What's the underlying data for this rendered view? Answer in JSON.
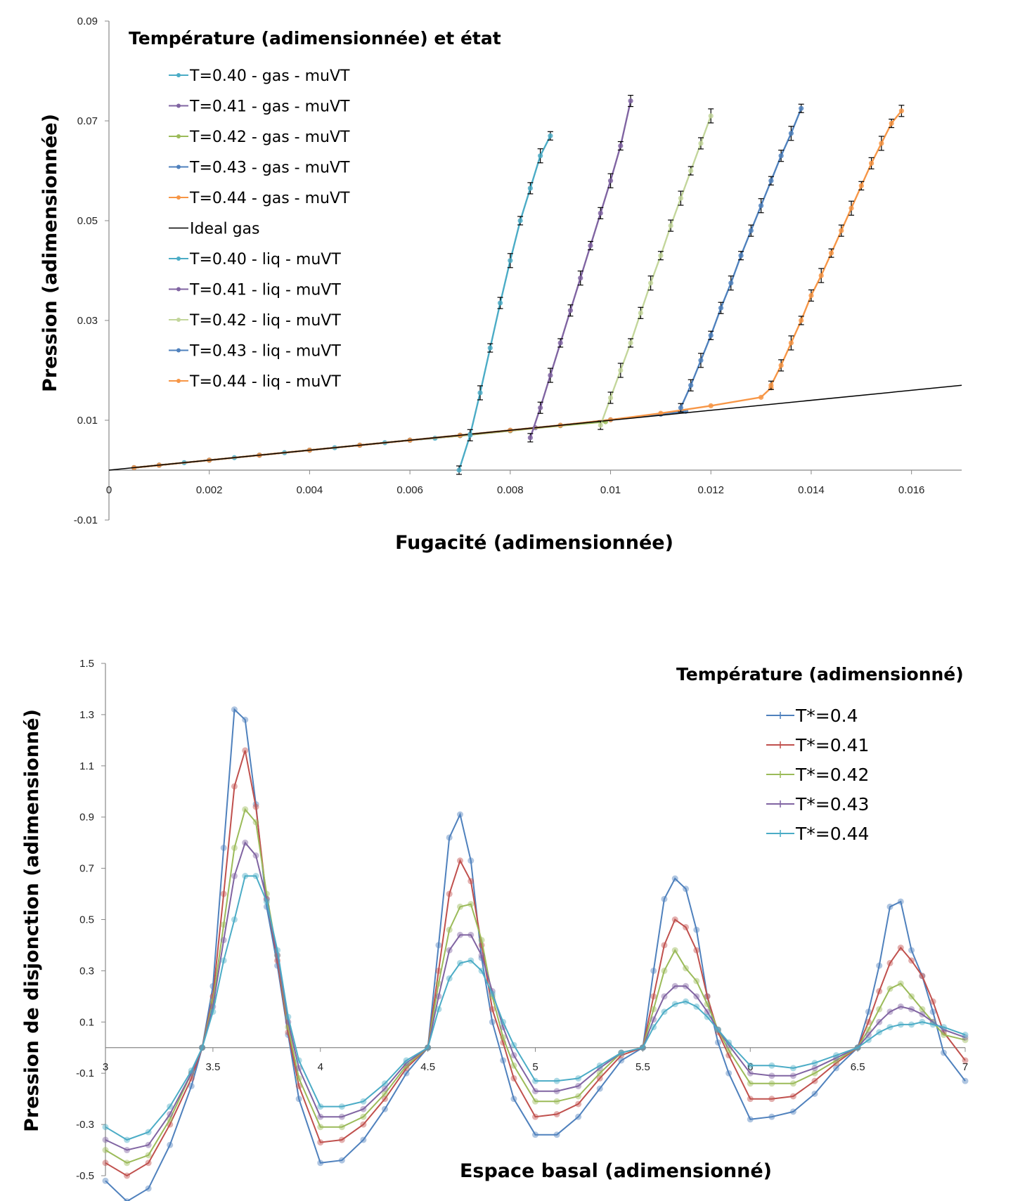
{
  "chart_data": [
    {
      "type": "line",
      "title": "",
      "xlabel": "Fugacité (adimensionnée)",
      "ylabel": "Pression (adimensionnée)",
      "xlim": [
        0,
        0.017
      ],
      "ylim": [
        -0.01,
        0.09
      ],
      "x_ticks": [
        "0",
        "0.002",
        "0.004",
        "0.006",
        "0.008",
        "0.01",
        "0.012",
        "0.014",
        "0.016"
      ],
      "y_ticks": [
        "-0.01",
        "0.01",
        "0.03",
        "0.05",
        "0.07",
        "0.09"
      ],
      "legend_title": "Température (adimensionnée) et état",
      "legend_position": "top-left",
      "grid": false,
      "series": [
        {
          "name": "T=0.40 - gas - muVT",
          "color": "#4bacc6",
          "x": [
            0.0005,
            0.001,
            0.0015,
            0.002,
            0.0025,
            0.003,
            0.0035,
            0.004,
            0.0045,
            0.005,
            0.0055,
            0.006,
            0.0065,
            0.007,
            0.0072
          ],
          "y": [
            0.0005,
            0.001,
            0.0015,
            0.002,
            0.0025,
            0.003,
            0.0035,
            0.004,
            0.0045,
            0.005,
            0.0055,
            0.006,
            0.0064,
            0.007,
            0.0072
          ]
        },
        {
          "name": "T=0.41 - gas - muVT",
          "color": "#8064a2",
          "x": [
            0.0005,
            0.001,
            0.002,
            0.003,
            0.004,
            0.005,
            0.006,
            0.007,
            0.008,
            0.0085
          ],
          "y": [
            0.0005,
            0.001,
            0.002,
            0.003,
            0.004,
            0.005,
            0.006,
            0.0069,
            0.0079,
            0.0085
          ]
        },
        {
          "name": "T=0.42 - gas - muVT",
          "color": "#9bbb59",
          "x": [
            0.0005,
            0.001,
            0.002,
            0.003,
            0.004,
            0.005,
            0.006,
            0.007,
            0.008,
            0.009,
            0.0099
          ],
          "y": [
            0.0005,
            0.001,
            0.002,
            0.003,
            0.004,
            0.005,
            0.006,
            0.0069,
            0.0079,
            0.0089,
            0.0097
          ]
        },
        {
          "name": "T=0.43 - gas - muVT",
          "color": "#4f81bd",
          "x": [
            0.0005,
            0.001,
            0.002,
            0.003,
            0.004,
            0.005,
            0.006,
            0.007,
            0.008,
            0.009,
            0.01,
            0.011,
            0.0115
          ],
          "y": [
            0.0005,
            0.001,
            0.002,
            0.003,
            0.004,
            0.005,
            0.006,
            0.007,
            0.008,
            0.009,
            0.0101,
            0.0112,
            0.0118
          ]
        },
        {
          "name": "T=0.44 - gas - muVT",
          "color": "#f79646",
          "x": [
            0.0005,
            0.001,
            0.002,
            0.003,
            0.004,
            0.005,
            0.006,
            0.007,
            0.008,
            0.009,
            0.01,
            0.011,
            0.012,
            0.013,
            0.0132
          ],
          "y": [
            0.0005,
            0.001,
            0.002,
            0.003,
            0.004,
            0.005,
            0.006,
            0.007,
            0.008,
            0.009,
            0.0101,
            0.0114,
            0.0129,
            0.0146,
            0.0165
          ]
        },
        {
          "name": "Ideal gas",
          "color": "#000000",
          "x": [
            0,
            0.017
          ],
          "y": [
            0,
            0.017
          ]
        },
        {
          "name": "T=0.40 - liq - muVT",
          "color": "#4bacc6",
          "x": [
            0.00698,
            0.0072,
            0.0074,
            0.0076,
            0.0078,
            0.008,
            0.0082,
            0.0084,
            0.0086,
            0.0088
          ],
          "y": [
            0.0,
            0.007,
            0.0155,
            0.0245,
            0.0335,
            0.042,
            0.05,
            0.0565,
            0.063,
            0.067
          ]
        },
        {
          "name": "T=0.41 - liq - muVT",
          "color": "#8064a2",
          "x": [
            0.0084,
            0.0086,
            0.0088,
            0.009,
            0.0092,
            0.0094,
            0.0096,
            0.0098,
            0.01,
            0.0102,
            0.0104
          ],
          "y": [
            0.0065,
            0.0125,
            0.019,
            0.0255,
            0.032,
            0.0385,
            0.045,
            0.0515,
            0.058,
            0.065,
            0.074
          ]
        },
        {
          "name": "T=0.42 - liq - muVT",
          "color": "#c3d69b",
          "x": [
            0.0098,
            0.01,
            0.0102,
            0.0104,
            0.0106,
            0.0108,
            0.011,
            0.0112,
            0.0114,
            0.0116,
            0.0118,
            0.012
          ],
          "y": [
            0.009,
            0.0145,
            0.02,
            0.0255,
            0.0315,
            0.0375,
            0.043,
            0.049,
            0.0545,
            0.06,
            0.0655,
            0.071
          ]
        },
        {
          "name": "T=0.43 - liq - muVT",
          "color": "#4f81bd",
          "x": [
            0.0114,
            0.0116,
            0.0118,
            0.012,
            0.0122,
            0.0124,
            0.0126,
            0.0128,
            0.013,
            0.0132,
            0.0134,
            0.0136,
            0.0138
          ],
          "y": [
            0.0125,
            0.017,
            0.022,
            0.027,
            0.0325,
            0.0375,
            0.043,
            0.048,
            0.053,
            0.058,
            0.063,
            0.0675,
            0.0725
          ]
        },
        {
          "name": "T=0.44 - liq - muVT",
          "color": "#f79646",
          "x": [
            0.0132,
            0.0134,
            0.0136,
            0.0138,
            0.014,
            0.0142,
            0.0144,
            0.0146,
            0.0148,
            0.015,
            0.0152,
            0.0154,
            0.0156,
            0.0158
          ],
          "y": [
            0.017,
            0.021,
            0.0255,
            0.03,
            0.035,
            0.039,
            0.0435,
            0.048,
            0.0525,
            0.057,
            0.0615,
            0.0655,
            0.0695,
            0.072
          ]
        }
      ]
    },
    {
      "type": "line",
      "title": "",
      "xlabel": "Espace basal (adimensionné)",
      "ylabel": "Pression de disjonction (adimensionné)",
      "xlim": [
        3,
        7
      ],
      "ylim": [
        -0.5,
        1.5
      ],
      "x_ticks": [
        "3",
        "3.5",
        "4",
        "4.5",
        "5",
        "5.5",
        "6",
        "6.5",
        "7"
      ],
      "y_ticks": [
        "-0.5",
        "-0.3",
        "-0.1",
        "0.1",
        "0.3",
        "0.5",
        "0.7",
        "0.9",
        "1.1",
        "1.3",
        "1.5"
      ],
      "legend_title": "Température (adimensionné)",
      "legend_position": "top-right",
      "grid": false,
      "series": [
        {
          "name": "T*=0.4",
          "color": "#4f81bd",
          "x": [
            3.0,
            3.1,
            3.2,
            3.3,
            3.4,
            3.45,
            3.5,
            3.55,
            3.6,
            3.65,
            3.7,
            3.75,
            3.8,
            3.85,
            3.9,
            4.0,
            4.1,
            4.2,
            4.3,
            4.4,
            4.5,
            4.55,
            4.6,
            4.65,
            4.7,
            4.75,
            4.8,
            4.85,
            4.9,
            5.0,
            5.1,
            5.2,
            5.3,
            5.4,
            5.5,
            5.55,
            5.6,
            5.65,
            5.7,
            5.75,
            5.8,
            5.85,
            5.9,
            6.0,
            6.1,
            6.2,
            6.3,
            6.4,
            6.5,
            6.55,
            6.6,
            6.65,
            6.7,
            6.75,
            6.8,
            6.85,
            6.9,
            7.0
          ],
          "y": [
            -0.52,
            -0.6,
            -0.55,
            -0.38,
            -0.15,
            0.0,
            0.24,
            0.78,
            1.32,
            1.28,
            0.95,
            0.55,
            0.32,
            0.05,
            -0.2,
            -0.45,
            -0.44,
            -0.36,
            -0.24,
            -0.1,
            0.0,
            0.4,
            0.82,
            0.91,
            0.73,
            0.35,
            0.1,
            -0.05,
            -0.2,
            -0.34,
            -0.34,
            -0.27,
            -0.16,
            -0.05,
            0.0,
            0.3,
            0.58,
            0.66,
            0.62,
            0.46,
            0.2,
            0.02,
            -0.1,
            -0.28,
            -0.27,
            -0.25,
            -0.18,
            -0.08,
            0.0,
            0.14,
            0.32,
            0.55,
            0.57,
            0.38,
            0.28,
            0.14,
            -0.02,
            -0.13
          ]
        },
        {
          "name": "T*=0.41",
          "color": "#c0504d",
          "x": [
            3.0,
            3.1,
            3.2,
            3.3,
            3.4,
            3.45,
            3.5,
            3.55,
            3.6,
            3.65,
            3.7,
            3.75,
            3.8,
            3.85,
            3.9,
            4.0,
            4.1,
            4.2,
            4.3,
            4.4,
            4.5,
            4.55,
            4.6,
            4.65,
            4.7,
            4.75,
            4.8,
            4.85,
            4.9,
            5.0,
            5.1,
            5.2,
            5.3,
            5.4,
            5.5,
            5.55,
            5.6,
            5.65,
            5.7,
            5.75,
            5.8,
            5.85,
            5.9,
            6.0,
            6.1,
            6.2,
            6.3,
            6.4,
            6.5,
            6.55,
            6.6,
            6.65,
            6.7,
            6.75,
            6.8,
            6.85,
            6.9,
            7.0
          ],
          "y": [
            -0.45,
            -0.5,
            -0.45,
            -0.3,
            -0.12,
            0.0,
            0.2,
            0.6,
            1.02,
            1.16,
            0.94,
            0.58,
            0.34,
            0.06,
            -0.15,
            -0.37,
            -0.36,
            -0.3,
            -0.2,
            -0.08,
            0.0,
            0.3,
            0.6,
            0.73,
            0.65,
            0.4,
            0.15,
            0.02,
            -0.12,
            -0.27,
            -0.26,
            -0.22,
            -0.12,
            -0.03,
            0.0,
            0.2,
            0.4,
            0.5,
            0.47,
            0.38,
            0.2,
            0.06,
            -0.03,
            -0.2,
            -0.2,
            -0.19,
            -0.13,
            -0.06,
            0.0,
            0.1,
            0.22,
            0.33,
            0.39,
            0.34,
            0.28,
            0.18,
            0.06,
            -0.05
          ]
        },
        {
          "name": "T*=0.42",
          "color": "#9bbb59",
          "x": [
            3.0,
            3.1,
            3.2,
            3.3,
            3.4,
            3.45,
            3.5,
            3.55,
            3.6,
            3.65,
            3.7,
            3.75,
            3.8,
            3.85,
            3.9,
            4.0,
            4.1,
            4.2,
            4.3,
            4.4,
            4.5,
            4.55,
            4.6,
            4.65,
            4.7,
            4.75,
            4.8,
            4.85,
            4.9,
            5.0,
            5.1,
            5.2,
            5.3,
            5.4,
            5.5,
            5.55,
            5.6,
            5.65,
            5.7,
            5.75,
            5.8,
            5.85,
            5.9,
            6.0,
            6.1,
            6.2,
            6.3,
            6.4,
            6.5,
            6.55,
            6.6,
            6.65,
            6.7,
            6.75,
            6.8,
            6.85,
            6.9,
            7.0
          ],
          "y": [
            -0.4,
            -0.45,
            -0.42,
            -0.28,
            -0.1,
            0.0,
            0.18,
            0.48,
            0.78,
            0.93,
            0.88,
            0.6,
            0.36,
            0.08,
            -0.12,
            -0.31,
            -0.31,
            -0.27,
            -0.18,
            -0.07,
            0.0,
            0.25,
            0.46,
            0.55,
            0.56,
            0.42,
            0.2,
            0.04,
            -0.07,
            -0.21,
            -0.21,
            -0.19,
            -0.1,
            -0.02,
            0.0,
            0.15,
            0.3,
            0.38,
            0.31,
            0.26,
            0.17,
            0.07,
            -0.01,
            -0.14,
            -0.14,
            -0.14,
            -0.1,
            -0.05,
            0.0,
            0.07,
            0.15,
            0.23,
            0.25,
            0.2,
            0.15,
            0.1,
            0.05,
            0.03
          ]
        },
        {
          "name": "T*=0.43",
          "color": "#8064a2",
          "x": [
            3.0,
            3.1,
            3.2,
            3.3,
            3.4,
            3.45,
            3.5,
            3.55,
            3.6,
            3.65,
            3.7,
            3.75,
            3.8,
            3.85,
            3.9,
            4.0,
            4.1,
            4.2,
            4.3,
            4.4,
            4.5,
            4.55,
            4.6,
            4.65,
            4.7,
            4.75,
            4.8,
            4.85,
            4.9,
            5.0,
            5.1,
            5.2,
            5.3,
            5.4,
            5.5,
            5.55,
            5.6,
            5.65,
            5.7,
            5.75,
            5.8,
            5.85,
            5.9,
            6.0,
            6.1,
            6.2,
            6.3,
            6.4,
            6.5,
            6.55,
            6.6,
            6.65,
            6.7,
            6.75,
            6.8,
            6.85,
            6.9,
            7.0
          ],
          "y": [
            -0.36,
            -0.4,
            -0.38,
            -0.26,
            -0.1,
            0.0,
            0.16,
            0.42,
            0.67,
            0.8,
            0.75,
            0.58,
            0.36,
            0.1,
            -0.08,
            -0.27,
            -0.27,
            -0.24,
            -0.16,
            -0.06,
            0.0,
            0.2,
            0.38,
            0.44,
            0.44,
            0.36,
            0.22,
            0.08,
            -0.03,
            -0.17,
            -0.17,
            -0.15,
            -0.08,
            -0.02,
            0.0,
            0.11,
            0.2,
            0.24,
            0.24,
            0.2,
            0.14,
            0.07,
            0.01,
            -0.1,
            -0.11,
            -0.11,
            -0.08,
            -0.04,
            0.0,
            0.05,
            0.1,
            0.14,
            0.16,
            0.15,
            0.13,
            0.1,
            0.07,
            0.04
          ]
        },
        {
          "name": "T*=0.44",
          "color": "#4bacc6",
          "x": [
            3.0,
            3.1,
            3.2,
            3.3,
            3.4,
            3.45,
            3.5,
            3.55,
            3.6,
            3.65,
            3.7,
            3.75,
            3.8,
            3.85,
            3.9,
            4.0,
            4.1,
            4.2,
            4.3,
            4.4,
            4.5,
            4.55,
            4.6,
            4.65,
            4.7,
            4.75,
            4.8,
            4.85,
            4.9,
            5.0,
            5.1,
            5.2,
            5.3,
            5.4,
            5.5,
            5.55,
            5.6,
            5.65,
            5.7,
            5.75,
            5.8,
            5.85,
            5.9,
            6.0,
            6.1,
            6.2,
            6.3,
            6.4,
            6.5,
            6.55,
            6.6,
            6.65,
            6.7,
            6.75,
            6.8,
            6.85,
            6.9,
            7.0
          ],
          "y": [
            -0.31,
            -0.36,
            -0.33,
            -0.23,
            -0.09,
            0.0,
            0.14,
            0.34,
            0.5,
            0.67,
            0.67,
            0.57,
            0.38,
            0.12,
            -0.05,
            -0.23,
            -0.23,
            -0.21,
            -0.14,
            -0.05,
            0.0,
            0.15,
            0.27,
            0.33,
            0.34,
            0.3,
            0.21,
            0.1,
            0.01,
            -0.13,
            -0.13,
            -0.12,
            -0.07,
            -0.02,
            0.0,
            0.08,
            0.14,
            0.17,
            0.18,
            0.16,
            0.12,
            0.07,
            0.02,
            -0.07,
            -0.07,
            -0.08,
            -0.06,
            -0.03,
            0.0,
            0.03,
            0.06,
            0.08,
            0.09,
            0.09,
            0.1,
            0.09,
            0.08,
            0.05
          ]
        }
      ]
    }
  ]
}
